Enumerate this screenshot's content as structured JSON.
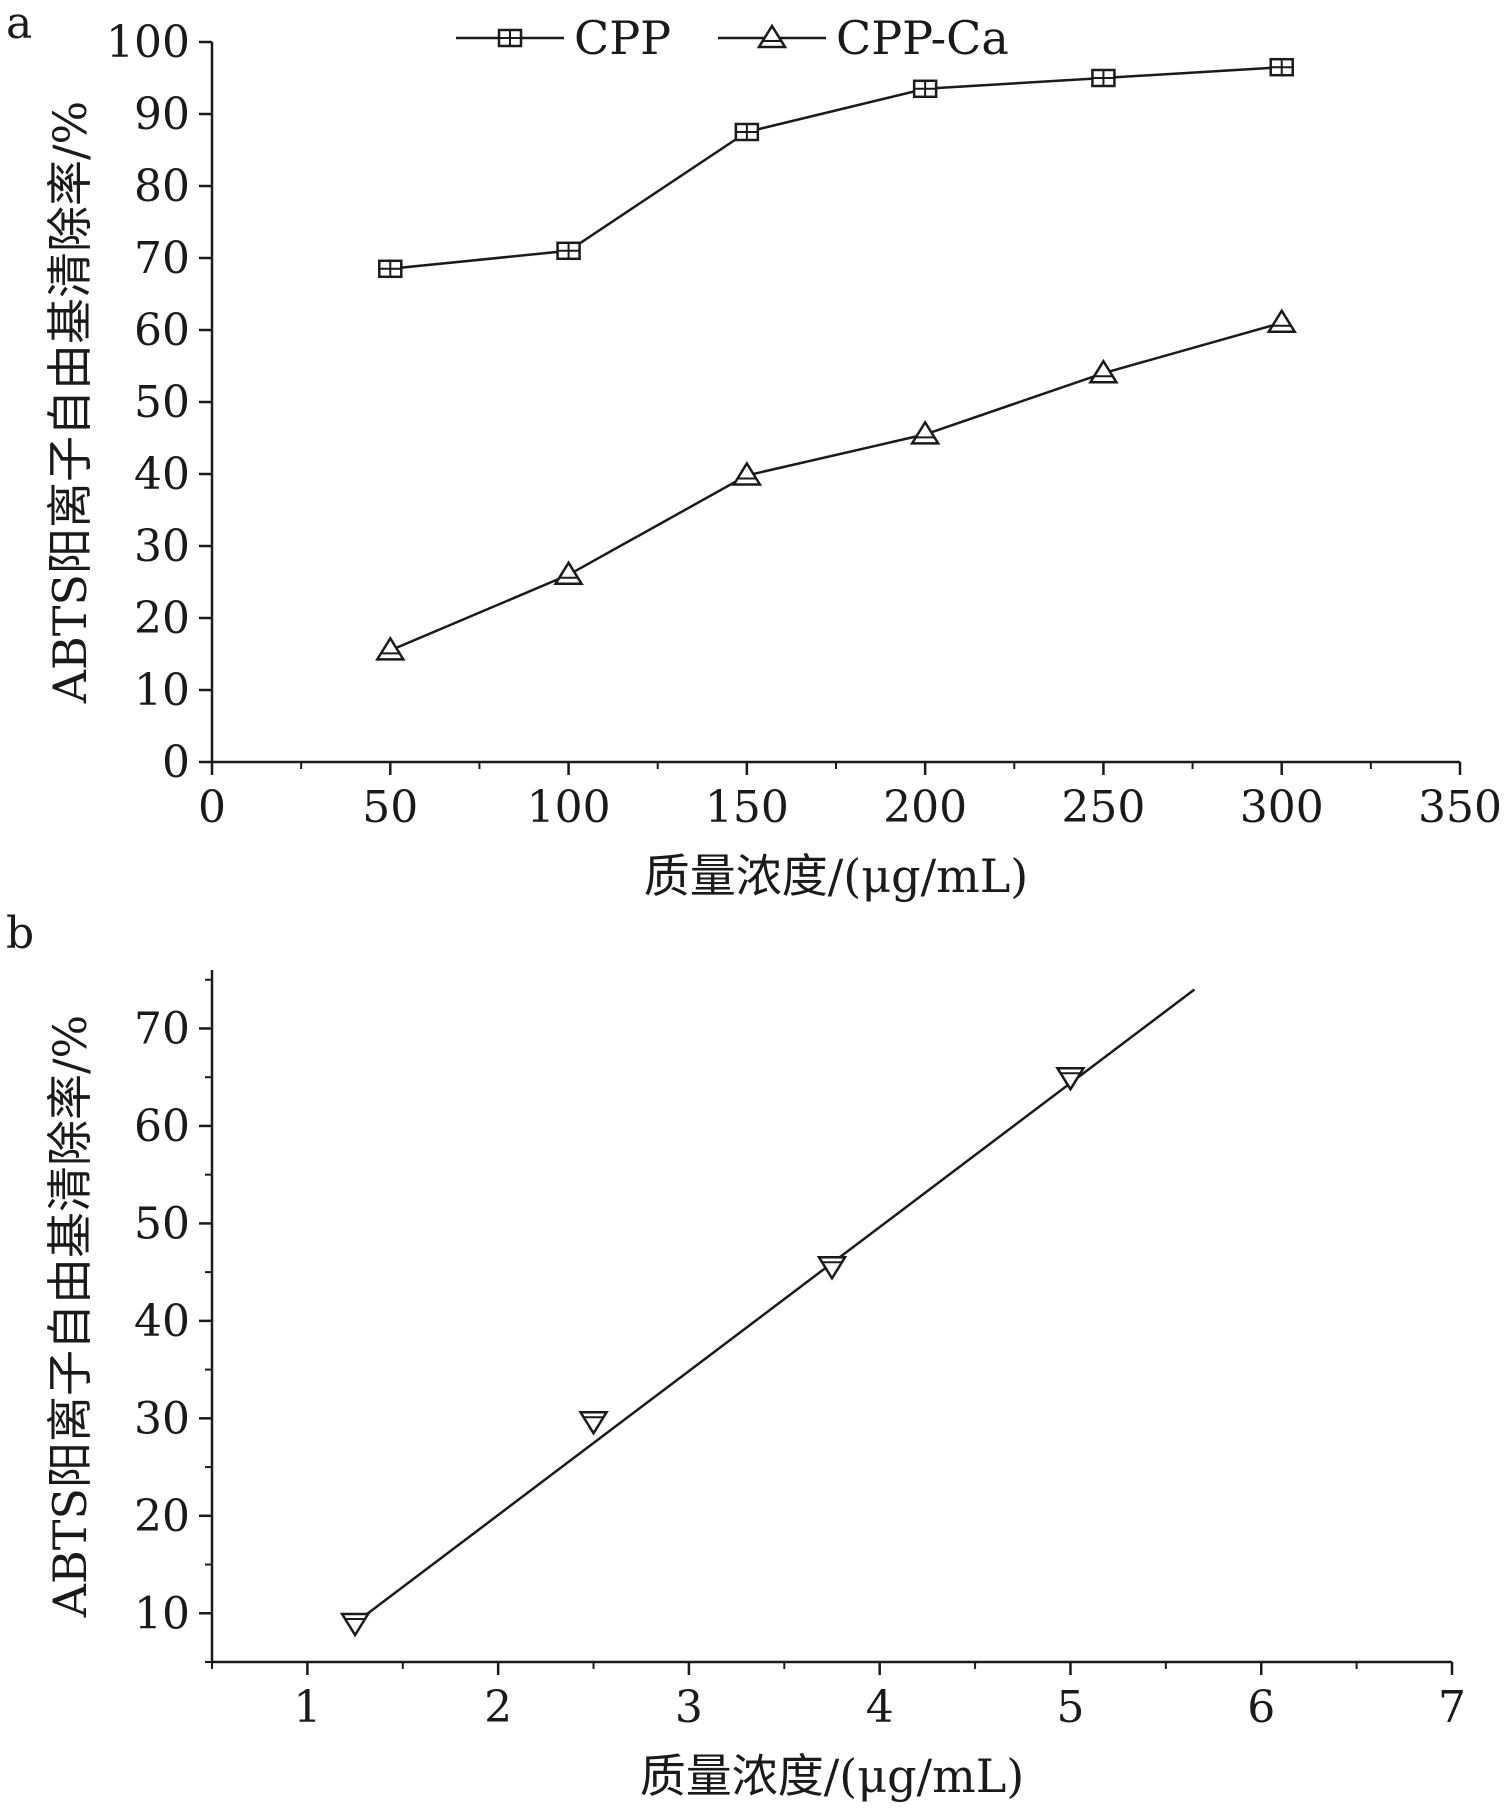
{
  "chart_data": [
    {
      "panel_label": "a",
      "type": "line",
      "xlabel": "质量浓度/(μg/mL)",
      "ylabel": "ABTS阳离子自由基清除率/%",
      "xlim": [
        0,
        350
      ],
      "ylim": [
        0,
        100
      ],
      "xticks": [
        0,
        50,
        100,
        150,
        200,
        250,
        300,
        350
      ],
      "yticks": [
        0,
        10,
        20,
        30,
        40,
        50,
        60,
        70,
        80,
        90,
        100
      ],
      "grid": false,
      "legend_position": "top",
      "x": [
        50,
        100,
        150,
        200,
        250,
        300
      ],
      "series": [
        {
          "name": "CPP",
          "marker": "square",
          "values": [
            68.5,
            71,
            87.5,
            93.5,
            95,
            96.5
          ]
        },
        {
          "name": "CPP-Ca",
          "marker": "triangle-up",
          "values": [
            15.5,
            26,
            39.8,
            45.5,
            54,
            61
          ]
        }
      ]
    },
    {
      "panel_label": "b",
      "type": "line",
      "xlabel": "质量浓度/(μg/mL)",
      "ylabel": "ABTS阳离子自由基清除率/%",
      "xlim": [
        0.5,
        7
      ],
      "ylim": [
        5,
        76
      ],
      "xticks": [
        1,
        2,
        3,
        4,
        5,
        6,
        7
      ],
      "yticks": [
        10,
        20,
        30,
        40,
        50,
        60,
        70
      ],
      "grid": false,
      "x": [
        1.25,
        2.5,
        3.75,
        5
      ],
      "series": [
        {
          "marker": "triangle-down",
          "values": [
            9,
            29.7,
            45.6,
            65
          ]
        }
      ],
      "fit_line": {
        "x": [
          1.25,
          5.65
        ],
        "y": [
          9.0,
          74.0
        ]
      }
    }
  ]
}
